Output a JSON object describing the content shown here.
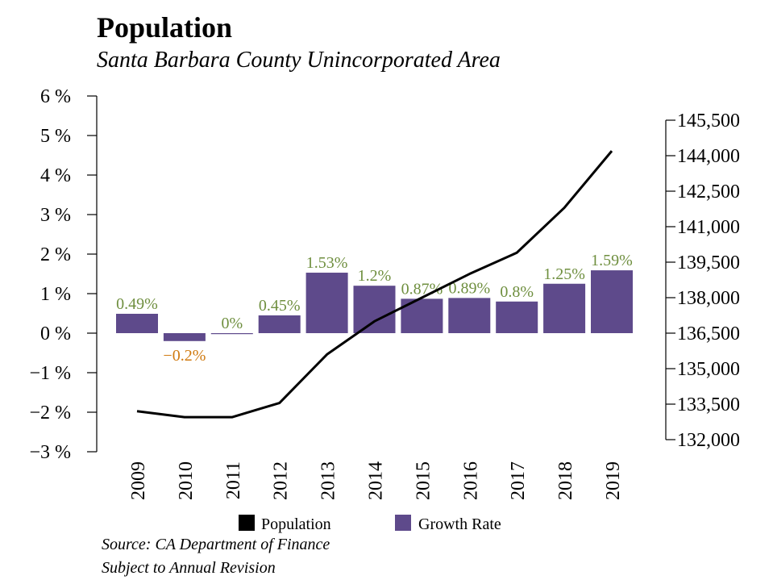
{
  "chart_data": {
    "type": "bar+line",
    "title": "Population",
    "subtitle": "Santa Barbara County Unincorporated Area",
    "categories": [
      "2009",
      "2010",
      "2011",
      "2012",
      "2013",
      "2014",
      "2015",
      "2016",
      "2017",
      "2018",
      "2019"
    ],
    "growth_rate": {
      "name": "Growth Rate",
      "values": [
        0.49,
        -0.2,
        0,
        0.45,
        1.53,
        1.2,
        0.87,
        0.89,
        0.8,
        1.25,
        1.59
      ],
      "labels": [
        "0.49%",
        "−0.2%",
        "0%",
        "0.45%",
        "1.53%",
        "1.2%",
        "0.87%",
        "0.89%",
        "0.8%",
        "1.25%",
        "1.59%"
      ],
      "color": "#5e4a8b",
      "positive_label_color": "#6f8f3f",
      "negative_label_color": "#d07a10"
    },
    "population": {
      "name": "Population",
      "values": [
        133200,
        132950,
        132950,
        133550,
        135600,
        137000,
        138000,
        139000,
        139900,
        141800,
        144200
      ],
      "color": "#000000"
    },
    "left_axis": {
      "ylim": [
        -3,
        6
      ],
      "ticks": [
        -3,
        -2,
        -1,
        0,
        1,
        2,
        3,
        4,
        5,
        6
      ],
      "tick_labels": [
        "−3 %",
        "−2 %",
        "−1 %",
        "0 %",
        "1 %",
        "2 %",
        "3 %",
        "4 %",
        "5 %",
        "6 %"
      ]
    },
    "right_axis": {
      "ylim": [
        132000,
        145500
      ],
      "ticks": [
        132000,
        133500,
        135000,
        136500,
        138000,
        139500,
        141000,
        142500,
        144000,
        145500
      ],
      "tick_labels": [
        "132,000",
        "133,500",
        "135,000",
        "136,500",
        "138,000",
        "139,500",
        "141,000",
        "142,500",
        "144,000",
        "145,500"
      ]
    },
    "legend": {
      "position": "bottom",
      "entries": [
        {
          "label": "Population",
          "color": "#000000"
        },
        {
          "label": "Growth Rate",
          "color": "#5e4a8b"
        }
      ]
    },
    "grid": false
  },
  "footer": {
    "source": "Source: CA Department of Finance",
    "note": "Subject to Annual Revision"
  }
}
